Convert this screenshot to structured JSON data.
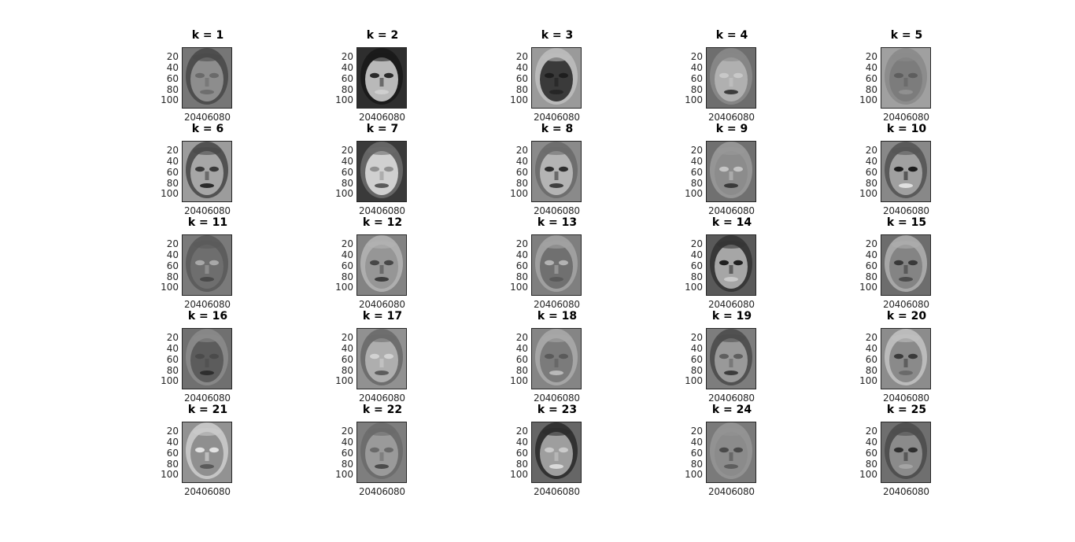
{
  "figure": {
    "panels": [
      {
        "title": "k = 1",
        "shade": "#767676",
        "hair": "#4a4a4a",
        "face": "#8d8d8d",
        "eyes": "#6a6a6a",
        "mouth": "#6e6e6e"
      },
      {
        "title": "k = 2",
        "shade": "#2e2e2e",
        "hair": "#1a1a1a",
        "face": "#b9b9b9",
        "eyes": "#2a2a2a",
        "mouth": "#cfcfcf"
      },
      {
        "title": "k = 3",
        "shade": "#9a9a9a",
        "hair": "#bcbcbc",
        "face": "#3a3a3a",
        "eyes": "#1e1e1e",
        "mouth": "#262626"
      },
      {
        "title": "k = 4",
        "shade": "#6e6e6e",
        "hair": "#888888",
        "face": "#b0b0b0",
        "eyes": "#c8c8c8",
        "mouth": "#3c3c3c"
      },
      {
        "title": "k = 5",
        "shade": "#a0a0a0",
        "hair": "#8a8a8a",
        "face": "#7c7c7c",
        "eyes": "#5e5e5e",
        "mouth": "#909090"
      },
      {
        "title": "k = 6",
        "shade": "#9c9c9c",
        "hair": "#4a4a4a",
        "face": "#a6a6a6",
        "eyes": "#3a3a3a",
        "mouth": "#2a2a2a"
      },
      {
        "title": "k = 7",
        "shade": "#3a3a3a",
        "hair": "#6a6a6a",
        "face": "#d0d0d0",
        "eyes": "#909090",
        "mouth": "#5a5a5a"
      },
      {
        "title": "k = 8",
        "shade": "#8a8a8a",
        "hair": "#6a6a6a",
        "face": "#b4b4b4",
        "eyes": "#2e2e2e",
        "mouth": "#404040"
      },
      {
        "title": "k = 9",
        "shade": "#707070",
        "hair": "#999999",
        "face": "#8c8c8c",
        "eyes": "#c4c4c4",
        "mouth": "#3a3a3a"
      },
      {
        "title": "k = 10",
        "shade": "#888888",
        "hair": "#555555",
        "face": "#a0a0a0",
        "eyes": "#1c1c1c",
        "mouth": "#e0e0e0"
      },
      {
        "title": "k = 11",
        "shade": "#7a7a7a",
        "hair": "#5a5a5a",
        "face": "#6e6e6e",
        "eyes": "#a8a8a8",
        "mouth": "#4a4a4a"
      },
      {
        "title": "k = 12",
        "shade": "#838383",
        "hair": "#b2b2b2",
        "face": "#969696",
        "eyes": "#474747",
        "mouth": "#3d3d3d"
      },
      {
        "title": "k = 13",
        "shade": "#7f7f7f",
        "hair": "#a3a3a3",
        "face": "#707070",
        "eyes": "#b3b3b3",
        "mouth": "#5a5a5a"
      },
      {
        "title": "k = 14",
        "shade": "#595959",
        "hair": "#343434",
        "face": "#a6a6a6",
        "eyes": "#202020",
        "mouth": "#cacaca"
      },
      {
        "title": "k = 15",
        "shade": "#6d6d6d",
        "hair": "#adadad",
        "face": "#848484",
        "eyes": "#393939",
        "mouth": "#4d4d4d"
      },
      {
        "title": "k = 16",
        "shade": "#707070",
        "hair": "#8a8a8a",
        "face": "#5c5c5c",
        "eyes": "#4b4b4b",
        "mouth": "#2e2e2e"
      },
      {
        "title": "k = 17",
        "shade": "#919191",
        "hair": "#6a6a6a",
        "face": "#aeaeae",
        "eyes": "#d2d2d2",
        "mouth": "#5c5c5c"
      },
      {
        "title": "k = 18",
        "shade": "#858585",
        "hair": "#a9a9a9",
        "face": "#7b7b7b",
        "eyes": "#5a5a5a",
        "mouth": "#b9b9b9"
      },
      {
        "title": "k = 19",
        "shade": "#7d7d7d",
        "hair": "#4d4d4d",
        "face": "#999999",
        "eyes": "#5f5f5f",
        "mouth": "#3c3c3c"
      },
      {
        "title": "k = 20",
        "shade": "#8c8c8c",
        "hair": "#c0c0c0",
        "face": "#8a8a8a",
        "eyes": "#3a3a3a",
        "mouth": "#6a6a6a"
      },
      {
        "title": "k = 21",
        "shade": "#929292",
        "hair": "#cbcbcb",
        "face": "#8f8f8f",
        "eyes": "#e2e2e2",
        "mouth": "#5a5a5a"
      },
      {
        "title": "k = 22",
        "shade": "#7e7e7e",
        "hair": "#6b6b6b",
        "face": "#9a9a9a",
        "eyes": "#6a6a6a",
        "mouth": "#4c4c4c"
      },
      {
        "title": "k = 23",
        "shade": "#666666",
        "hair": "#2c2c2c",
        "face": "#9e9e9e",
        "eyes": "#cacaca",
        "mouth": "#dadada"
      },
      {
        "title": "k = 24",
        "shade": "#7a7a7a",
        "hair": "#959595",
        "face": "#8b8b8b",
        "eyes": "#4a4a4a",
        "mouth": "#5e5e5e"
      },
      {
        "title": "k = 25",
        "shade": "#6f6f6f",
        "hair": "#4c4c4c",
        "face": "#8b8b8b",
        "eyes": "#2f2f2f",
        "mouth": "#a4a4a4"
      }
    ],
    "y_ticks": [
      "20",
      "40",
      "60",
      "80",
      "100"
    ],
    "x_ticks": [
      "20",
      "40",
      "60",
      "80"
    ]
  }
}
